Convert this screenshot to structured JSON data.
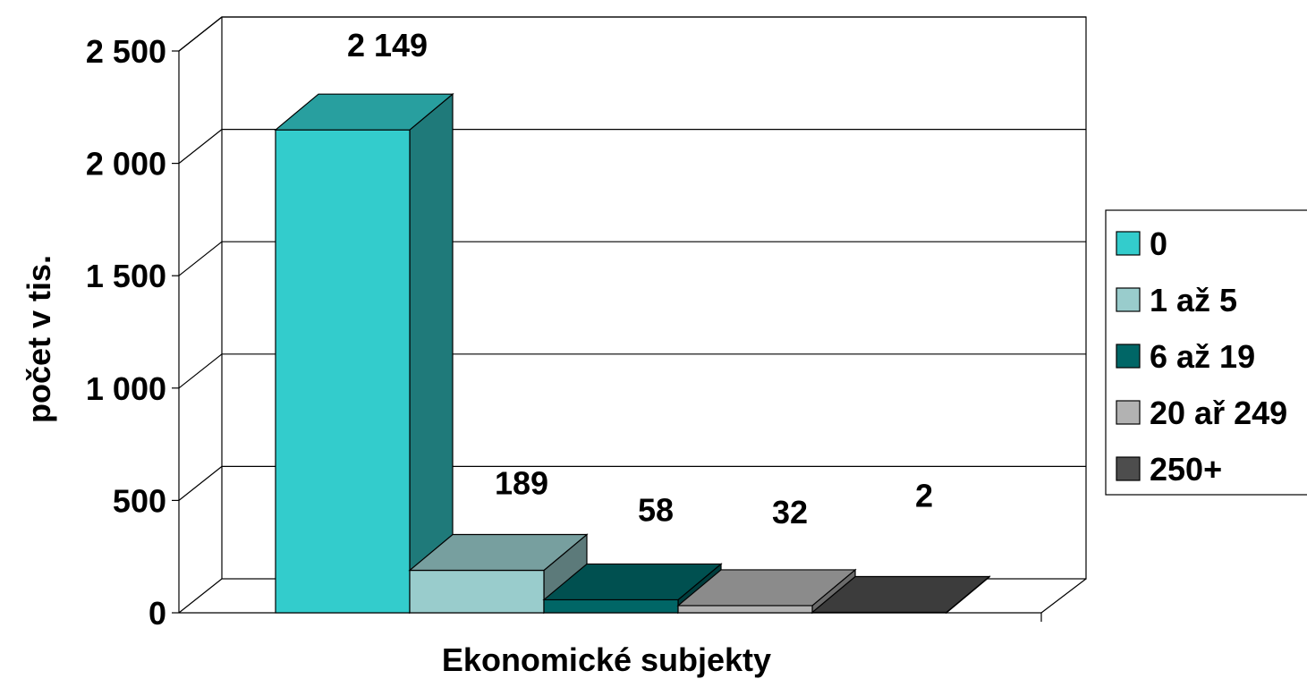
{
  "chart_data": {
    "type": "bar",
    "variant": "3d-clustered",
    "categories": [
      "Ekonomické subjekty"
    ],
    "series": [
      {
        "name": "0",
        "values": [
          2149
        ],
        "data_label": "2 149",
        "color": "#33CCCC"
      },
      {
        "name": "1 až 5",
        "values": [
          189
        ],
        "data_label": "189",
        "color": "#99CCCC"
      },
      {
        "name": "6 až 19",
        "values": [
          58
        ],
        "data_label": "58",
        "color": "#006666"
      },
      {
        "name": "20 ař 249",
        "values": [
          32
        ],
        "data_label": "32",
        "color": "#B2B2B2"
      },
      {
        "name": "250+",
        "values": [
          2
        ],
        "data_label": "2",
        "color": "#4D4D4D"
      }
    ],
    "xlabel": "Ekonomické subjekty",
    "ylabel": "počet v tis.",
    "ylim": [
      0,
      2500
    ],
    "yticks": [
      {
        "value": 0,
        "label": "0"
      },
      {
        "value": 500,
        "label": "500"
      },
      {
        "value": 1000,
        "label": "1 000"
      },
      {
        "value": 1500,
        "label": "1 500"
      },
      {
        "value": 2000,
        "label": "2 000"
      },
      {
        "value": 2500,
        "label": "2 500"
      }
    ],
    "grid": true,
    "legend_position": "right"
  }
}
